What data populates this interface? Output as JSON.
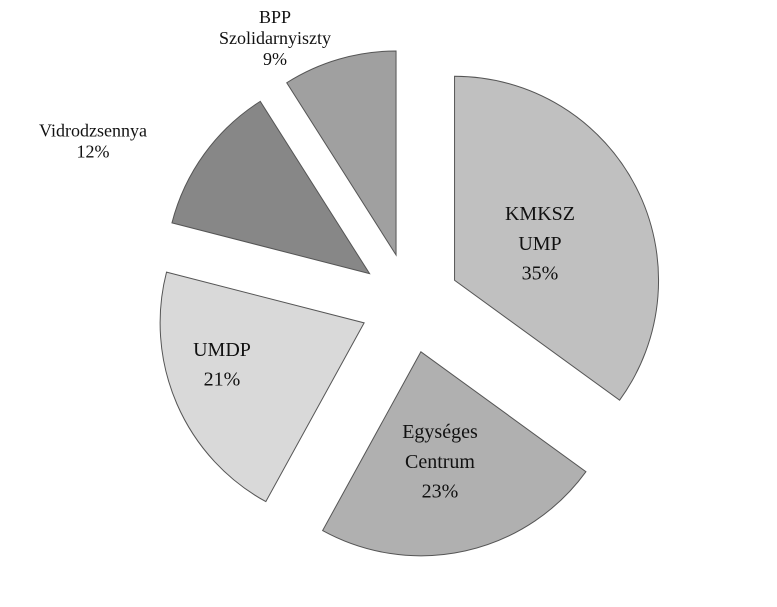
{
  "chart_data": {
    "type": "pie",
    "categories": [
      "KMKSZ UMP",
      "Egységes Centrum",
      "UMDP",
      "Vidrodzsennya",
      "BPP Szolidarnyiszty"
    ],
    "values": [
      35,
      23,
      21,
      12,
      9
    ],
    "value_labels": [
      "35%",
      "23%",
      "21%",
      "12%",
      "9%"
    ],
    "colors": [
      "#c0c0c0",
      "#b0b0b0",
      "#d9d9d9",
      "#878787",
      "#a0a0a0"
    ]
  }
}
